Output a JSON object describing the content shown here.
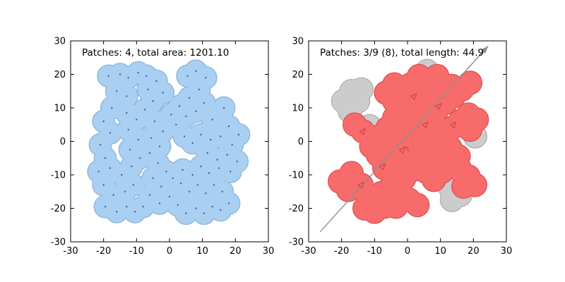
{
  "figure": {
    "background": "#ffffff"
  },
  "chart_data": [
    {
      "type": "scatter",
      "annotation": "Patches: 4, total area: 1201.10",
      "xlim": [
        -30,
        30
      ],
      "ylim": [
        -30,
        30
      ],
      "xticks": [
        -30,
        -20,
        -10,
        0,
        10,
        20,
        30
      ],
      "yticks": [
        -30,
        -20,
        -10,
        0,
        10,
        20,
        30
      ],
      "grid": false,
      "patch_radius": 3.2,
      "point_color": "#3a6590",
      "groups": [
        {
          "name": "buffered-patches",
          "fill": "#a9cff2",
          "edge": "#8cb4da",
          "dots": true,
          "points": [
            [
              -18.5,
              19.5
            ],
            [
              -15,
              20
            ],
            [
              -12.5,
              19
            ],
            [
              -9.5,
              20.5
            ],
            [
              -7,
              19.5
            ],
            [
              -16,
              15
            ],
            [
              -13,
              13.5
            ],
            [
              -17.5,
              10
            ],
            [
              -20,
              6
            ],
            [
              -18,
              2.5
            ],
            [
              -21,
              -1
            ],
            [
              -19.5,
              -5
            ],
            [
              -21.5,
              -9
            ],
            [
              -18,
              -8
            ],
            [
              -20,
              -13
            ],
            [
              -17,
              -16
            ],
            [
              -19.5,
              -19.5
            ],
            [
              -16,
              -21
            ],
            [
              -13,
              -19.5
            ],
            [
              -10.5,
              -21
            ],
            [
              -8,
              -19.5
            ],
            [
              -13.5,
              -15
            ],
            [
              -11,
              -13
            ],
            [
              -14.5,
              -10
            ],
            [
              -11.5,
              -7.5
            ],
            [
              -9,
              -5
            ],
            [
              -12,
              -2.5
            ],
            [
              -9.5,
              0.5
            ],
            [
              -12.5,
              3.5
            ],
            [
              -10,
              6.5
            ],
            [
              -13,
              8.5
            ],
            [
              -7.5,
              9.5
            ],
            [
              -5,
              12
            ],
            [
              -6.5,
              15.5
            ],
            [
              -4,
              18
            ],
            [
              -2,
              14.5
            ],
            [
              -4.5,
              6
            ],
            [
              -2,
              3
            ],
            [
              -5.5,
              1
            ],
            [
              -3,
              -1.5
            ],
            [
              -6,
              -3.5
            ],
            [
              -3.5,
              -6.5
            ],
            [
              -1,
              -9
            ],
            [
              -5,
              -11
            ],
            [
              -2.5,
              -13.5
            ],
            [
              -6,
              -16
            ],
            [
              -3,
              -18.5
            ],
            [
              0,
              -16.5
            ],
            [
              2.5,
              -19
            ],
            [
              5,
              -21.5
            ],
            [
              8,
              -20
            ],
            [
              10.5,
              -21.5
            ],
            [
              13,
              -19.5
            ],
            [
              15.5,
              -20.5
            ],
            [
              18,
              -18.5
            ],
            [
              16,
              -15
            ],
            [
              13.5,
              -13
            ],
            [
              11,
              -15.5
            ],
            [
              8.5,
              -13
            ],
            [
              6,
              -15
            ],
            [
              3.5,
              -12.5
            ],
            [
              1,
              -11
            ],
            [
              4,
              -8.5
            ],
            [
              7,
              -10
            ],
            [
              9.5,
              -7.5
            ],
            [
              12,
              -9.5
            ],
            [
              15,
              -8
            ],
            [
              18.5,
              -9
            ],
            [
              20.5,
              -6
            ],
            [
              17.5,
              -4
            ],
            [
              14.5,
              -5.5
            ],
            [
              11.5,
              -3.5
            ],
            [
              19,
              -1
            ],
            [
              21,
              2
            ],
            [
              18,
              4.5
            ],
            [
              15.5,
              1.5
            ],
            [
              12.5,
              0.5
            ],
            [
              9.5,
              2
            ],
            [
              7,
              -0.5
            ],
            [
              4.5,
              1.5
            ],
            [
              2,
              5
            ],
            [
              5,
              7.5
            ],
            [
              8,
              9
            ],
            [
              3,
              10.5
            ],
            [
              0.5,
              8
            ],
            [
              6,
              13
            ],
            [
              9,
              15.5
            ],
            [
              5.5,
              19.5
            ],
            [
              8,
              21
            ],
            [
              11,
              19
            ],
            [
              16.5,
              10
            ],
            [
              13,
              6.5
            ],
            [
              10.5,
              11.5
            ]
          ]
        }
      ]
    },
    {
      "type": "scatter",
      "annotation": "Patches: 3/9 (8), total length: 44.9",
      "xlim": [
        -30,
        30
      ],
      "ylim": [
        -30,
        30
      ],
      "xticks": [
        -30,
        -20,
        -10,
        0,
        10,
        20,
        30
      ],
      "yticks": [
        -30,
        -20,
        -10,
        0,
        10,
        20,
        30
      ],
      "grid": false,
      "patch_radius": 3.4,
      "groups": [
        {
          "name": "unselected-patches",
          "fill": "#cccccc",
          "edge": "#b0b0b0",
          "dots": false,
          "points": [
            [
              -17,
              15
            ],
            [
              -19.5,
              12
            ],
            [
              -15,
              12
            ],
            [
              -17.5,
              9
            ],
            [
              -14,
              15.5
            ],
            [
              -11.5,
              4.5
            ],
            [
              6,
              21
            ],
            [
              20.5,
              1.5
            ],
            [
              13,
              -14
            ],
            [
              16,
              -16
            ],
            [
              13.5,
              -17.5
            ]
          ]
        },
        {
          "name": "selected-patches",
          "fill": "#f76b6b",
          "edge": "#dd5252",
          "dots": false,
          "points": [
            [
              -20.5,
              -12
            ],
            [
              -18,
              -14.5
            ],
            [
              -15.5,
              -12.5
            ],
            [
              -17,
              -9.5
            ],
            [
              -14,
              -13
            ],
            [
              -12,
              -17
            ],
            [
              -13,
              -20
            ],
            [
              -10,
              -21
            ],
            [
              -7,
              -19.5
            ],
            [
              -8,
              -15.5
            ],
            [
              -5,
              -13.5
            ],
            [
              -2,
              -15
            ],
            [
              0.5,
              -17.5
            ],
            [
              -3.5,
              -19.5
            ],
            [
              3,
              -19
            ],
            [
              -1,
              -11
            ],
            [
              1.5,
              -8.5
            ],
            [
              -1,
              -6
            ],
            [
              -3.5,
              -3.5
            ],
            [
              -6,
              -1
            ],
            [
              -4,
              -6.5
            ],
            [
              -7,
              -8
            ],
            [
              -9,
              -4
            ],
            [
              -11,
              -1.5
            ],
            [
              -8.5,
              1.5
            ],
            [
              -6,
              4
            ],
            [
              -3,
              2
            ],
            [
              -1.5,
              4.5
            ],
            [
              -4,
              7
            ],
            [
              -1,
              9
            ],
            [
              -13.5,
              3
            ],
            [
              -16,
              5
            ],
            [
              1,
              1.5
            ],
            [
              3.5,
              -1
            ],
            [
              6,
              -3.5
            ],
            [
              4,
              -6
            ],
            [
              8,
              -1.5
            ],
            [
              10.5,
              -4
            ],
            [
              13,
              -6
            ],
            [
              15.5,
              -4.5
            ],
            [
              13,
              -2
            ],
            [
              16,
              -8.5
            ],
            [
              18.5,
              -10.5
            ],
            [
              20.5,
              -13
            ],
            [
              17,
              -13.5
            ],
            [
              10.5,
              -9
            ],
            [
              8,
              -11.5
            ],
            [
              5.5,
              -9
            ],
            [
              1,
              7
            ],
            [
              3.5,
              9.5
            ],
            [
              6,
              7
            ],
            [
              8.5,
              4.5
            ],
            [
              6,
              2
            ],
            [
              11,
              2
            ],
            [
              13.5,
              4
            ],
            [
              16,
              6
            ],
            [
              18.5,
              8
            ],
            [
              21,
              6.5
            ],
            [
              19,
              3.5
            ],
            [
              9,
              9.5
            ],
            [
              11.5,
              11.5
            ],
            [
              14,
              13.5
            ],
            [
              16.5,
              15.5
            ],
            [
              19,
              17.5
            ],
            [
              13.5,
              16.5
            ],
            [
              11,
              14
            ],
            [
              6,
              12
            ],
            [
              3.5,
              14.5
            ],
            [
              1,
              12
            ],
            [
              -1.5,
              14.5
            ],
            [
              1,
              17
            ],
            [
              3.5,
              19.5
            ],
            [
              6.5,
              17
            ],
            [
              -4,
              12
            ],
            [
              -6.5,
              14.5
            ],
            [
              -4,
              17
            ],
            [
              9,
              19.5
            ]
          ]
        }
      ],
      "arrow": {
        "from": [
          -26.5,
          -27
        ],
        "to": [
          24.5,
          28.5
        ],
        "color": "#8f8f8f"
      },
      "marker_color": "#c94444",
      "markers": [
        [
          -14,
          -13
        ],
        [
          -7.5,
          -7.5
        ],
        [
          -13.5,
          3
        ],
        [
          -1.5,
          -2.5
        ],
        [
          5.5,
          5
        ],
        [
          9.5,
          10.5
        ],
        [
          2,
          13.5
        ],
        [
          14,
          5
        ]
      ]
    }
  ]
}
